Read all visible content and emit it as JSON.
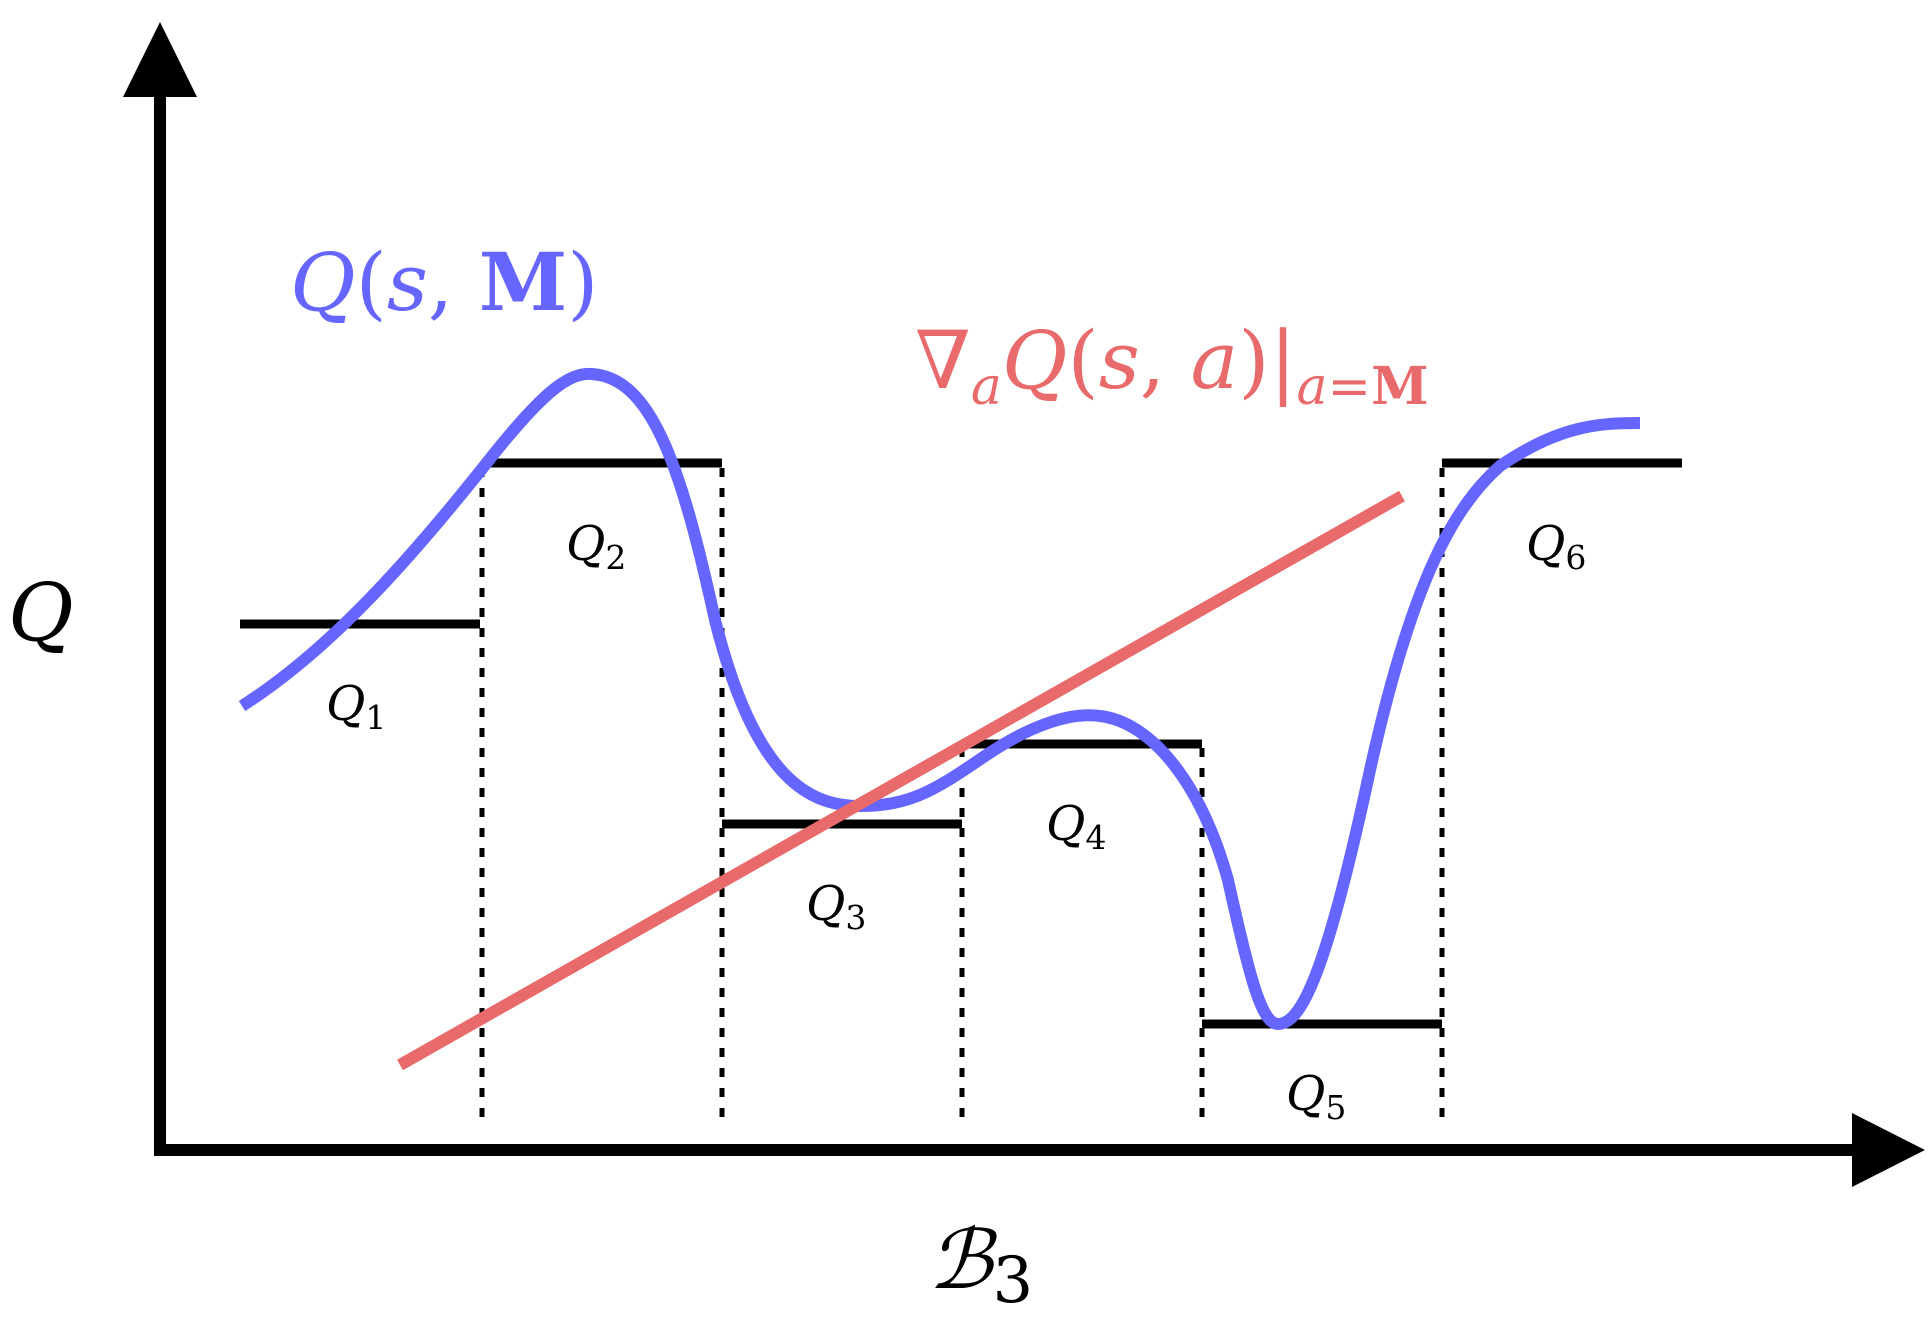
{
  "colors": {
    "axis": "#000000",
    "curve": "#6666ff",
    "gradient": "#e96a6a",
    "text": "#000000"
  },
  "axes": {
    "y_label": "Q",
    "x_label": {
      "main": "ℬ",
      "sub": "3"
    }
  },
  "curve_label": {
    "q": "Q",
    "open": "(",
    "s": "s",
    "comma": ", ",
    "M": "M",
    "close": ")"
  },
  "gradient_label": {
    "nabla": "∇",
    "sub_a": "a",
    "q": "Q",
    "open": "(",
    "s": "s",
    "comma": ", ",
    "a": "a",
    "close": ")",
    "bar": "|",
    "sub_eval_a": "a",
    "sub_eval_eq": "=",
    "sub_eval_M": "M"
  },
  "bins": [
    {
      "name": "Q",
      "sub": "1"
    },
    {
      "name": "Q",
      "sub": "2"
    },
    {
      "name": "Q",
      "sub": "3"
    },
    {
      "name": "Q",
      "sub": "4"
    },
    {
      "name": "Q",
      "sub": "5"
    },
    {
      "name": "Q",
      "sub": "6"
    }
  ]
}
